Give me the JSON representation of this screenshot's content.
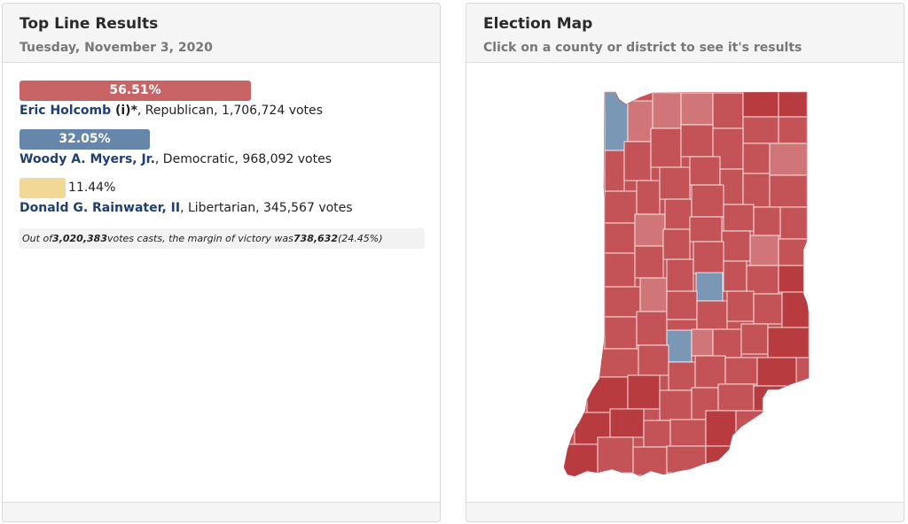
{
  "left_panel": {
    "title": "Top Line Results",
    "subtitle": "Tuesday, November 3, 2020"
  },
  "candidates": [
    {
      "percent_label": "56.51%",
      "percent_value": 56.51,
      "name": "Eric Holcomb",
      "incumbent_mark": " (i)*",
      "details": ", Republican, 1,706,724 votes",
      "color": "#c86466"
    },
    {
      "percent_label": "32.05%",
      "percent_value": 32.05,
      "name": "Woody A. Myers, Jr.",
      "incumbent_mark": "",
      "details": ", Democratic, 968,092 votes",
      "color": "#6687a9"
    },
    {
      "percent_label": "11.44%",
      "percent_value": 11.44,
      "name": "Donald G. Rainwater, II",
      "incumbent_mark": "",
      "details": ", Libertarian, 345,567 votes",
      "color": "#f2d896"
    }
  ],
  "summary": {
    "prefix": "Out of ",
    "total_votes": "3,020,383",
    "middle": " votes casts, the margin of victory was ",
    "margin": "738,632",
    "margin_pct": " (24.45%)"
  },
  "right_panel": {
    "title": "Election Map",
    "subtitle": "Click on a county or district to see it's results"
  },
  "map": {
    "state": "Indiana",
    "colors": {
      "dark_red": "#b83b40",
      "mid_red": "#c45358",
      "light_red": "#d07578",
      "blue": "#7a97b6",
      "border": "#ffffff"
    }
  }
}
